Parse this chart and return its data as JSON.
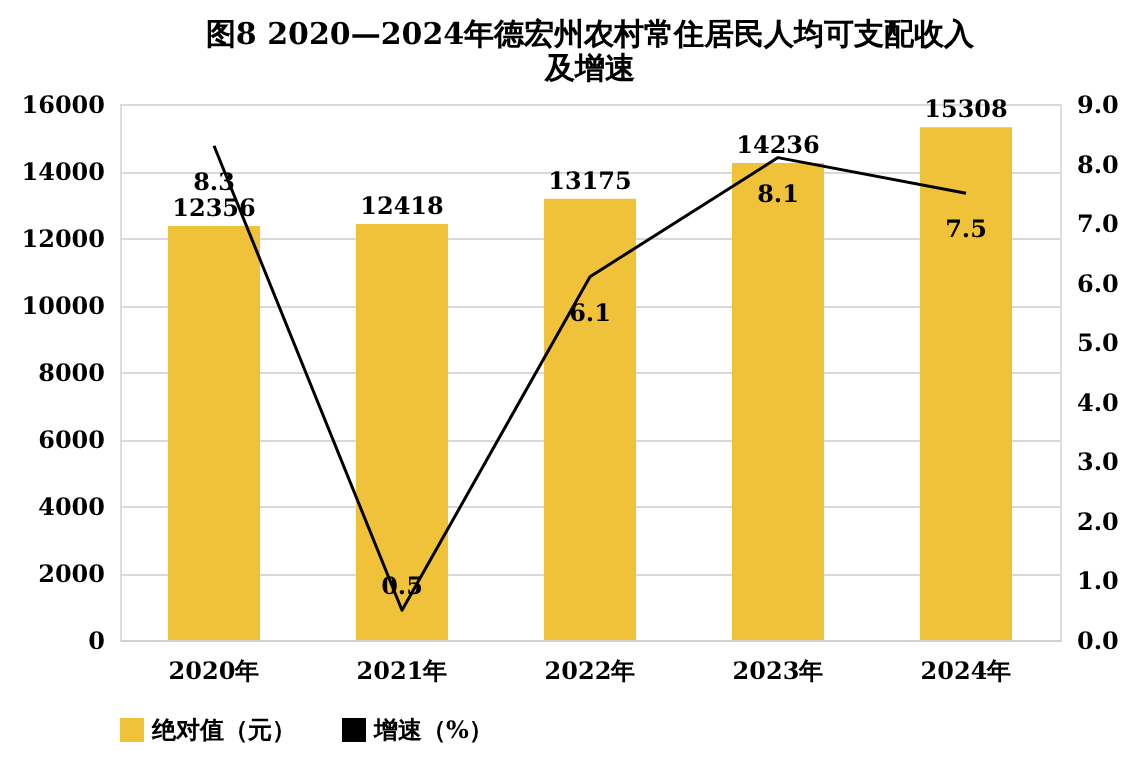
{
  "chart_data": {
    "type": "bar",
    "title": [
      "图8  2020—2024年德宏州农村常住居民人均可支配收入",
      "及增速"
    ],
    "categories": [
      "2020年",
      "2021年",
      "2022年",
      "2023年",
      "2024年"
    ],
    "series": [
      {
        "name": "绝对值（元）",
        "color": "#f0c23a",
        "values": [
          12356,
          12418,
          13175,
          14236,
          15308
        ]
      },
      {
        "name": "增速（%）",
        "type": "line",
        "axis": "y2",
        "color": "#000000",
        "values": [
          8.3,
          0.5,
          6.1,
          8.1,
          7.5
        ]
      }
    ],
    "ylim": [
      0,
      16000
    ],
    "yticks": [
      0,
      2000,
      4000,
      6000,
      8000,
      10000,
      12000,
      14000,
      16000
    ],
    "y2lim": [
      0,
      9
    ],
    "y2ticks": [
      {
        "value": 0,
        "label": "0.0"
      },
      {
        "value": 1,
        "label": "1.0"
      },
      {
        "value": 2,
        "label": "2.0"
      },
      {
        "value": 3,
        "label": "3.0"
      },
      {
        "value": 4,
        "label": "4.0"
      },
      {
        "value": 5,
        "label": "5.0"
      },
      {
        "value": 6,
        "label": "6.0"
      },
      {
        "value": 7,
        "label": "7.0"
      },
      {
        "value": 8,
        "label": "8.0"
      },
      {
        "value": 9,
        "label": "9.0"
      }
    ],
    "grid": "y",
    "legend": "bottom",
    "data_labels": true,
    "marker": "none"
  }
}
